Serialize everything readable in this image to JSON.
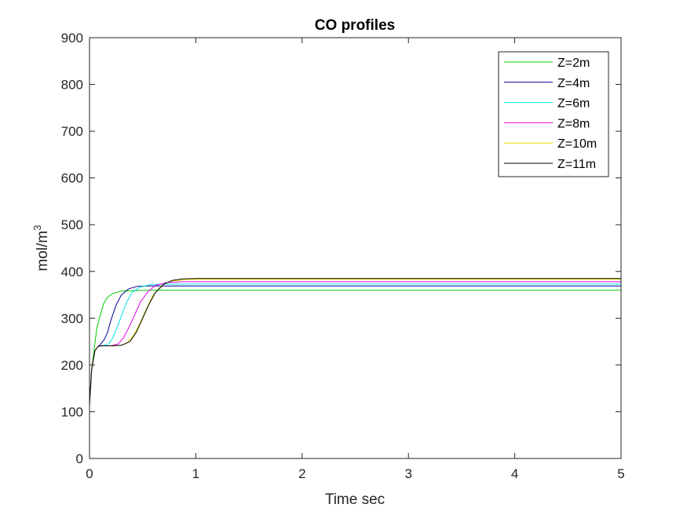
{
  "chart_data": {
    "type": "line",
    "title": "CO profiles",
    "xlabel": "Time sec",
    "ylabel": {
      "base": "mol/m",
      "superscript": "3"
    },
    "xlim": [
      0,
      5
    ],
    "ylim": [
      0,
      900
    ],
    "xticks": [
      0,
      1,
      2,
      3,
      4,
      5
    ],
    "yticks": [
      0,
      100,
      200,
      300,
      400,
      500,
      600,
      700,
      800,
      900
    ],
    "grid": false,
    "legend_position": "top-right",
    "series": [
      {
        "name": "Z=2m",
        "color": "#00cc00",
        "x": [
          0,
          0.02,
          0.05,
          0.07,
          0.1,
          0.13,
          0.17,
          0.22,
          0.3,
          0.4,
          0.6,
          1,
          2,
          5
        ],
        "y": [
          115,
          190,
          245,
          280,
          305,
          330,
          345,
          353,
          358,
          359,
          360,
          360,
          360,
          360
        ]
      },
      {
        "name": "Z=4m",
        "color": "#000099",
        "x": [
          0,
          0.02,
          0.05,
          0.08,
          0.1,
          0.14,
          0.17,
          0.2,
          0.25,
          0.3,
          0.37,
          0.45,
          0.55,
          0.7,
          1,
          2,
          5
        ],
        "y": [
          115,
          190,
          230,
          240,
          243,
          255,
          270,
          295,
          328,
          350,
          363,
          368,
          369,
          369,
          369,
          369,
          369
        ]
      },
      {
        "name": "Z=6m",
        "color": "#00e6e6",
        "x": [
          0,
          0.02,
          0.05,
          0.08,
          0.12,
          0.18,
          0.22,
          0.26,
          0.3,
          0.35,
          0.4,
          0.48,
          0.58,
          0.7,
          1,
          2,
          5
        ],
        "y": [
          115,
          190,
          230,
          240,
          241,
          245,
          258,
          280,
          305,
          335,
          355,
          367,
          372,
          373,
          373,
          373,
          373
        ]
      },
      {
        "name": "Z=8m",
        "color": "#e600e6",
        "x": [
          0,
          0.02,
          0.05,
          0.08,
          0.12,
          0.2,
          0.27,
          0.32,
          0.37,
          0.42,
          0.48,
          0.55,
          0.62,
          0.72,
          0.85,
          1,
          2,
          5
        ],
        "y": [
          115,
          190,
          230,
          240,
          241,
          241,
          245,
          258,
          280,
          305,
          335,
          357,
          370,
          376,
          378,
          378,
          378,
          378
        ]
      },
      {
        "name": "Z=10m",
        "color": "#e6e600",
        "x": [
          0,
          0.02,
          0.05,
          0.08,
          0.12,
          0.2,
          0.3,
          0.36,
          0.42,
          0.48,
          0.54,
          0.6,
          0.68,
          0.76,
          0.88,
          1,
          2,
          5
        ],
        "y": [
          115,
          190,
          230,
          240,
          241,
          241,
          242,
          248,
          265,
          292,
          322,
          350,
          370,
          379,
          382,
          383,
          383,
          383
        ]
      },
      {
        "name": "Z=11m",
        "color": "#000000",
        "x": [
          0,
          0.02,
          0.05,
          0.08,
          0.12,
          0.2,
          0.3,
          0.38,
          0.44,
          0.5,
          0.56,
          0.62,
          0.7,
          0.78,
          0.88,
          1,
          2,
          5
        ],
        "y": [
          115,
          190,
          230,
          240,
          241,
          241,
          242,
          250,
          270,
          300,
          330,
          355,
          373,
          381,
          384,
          385,
          385,
          385
        ]
      }
    ]
  }
}
